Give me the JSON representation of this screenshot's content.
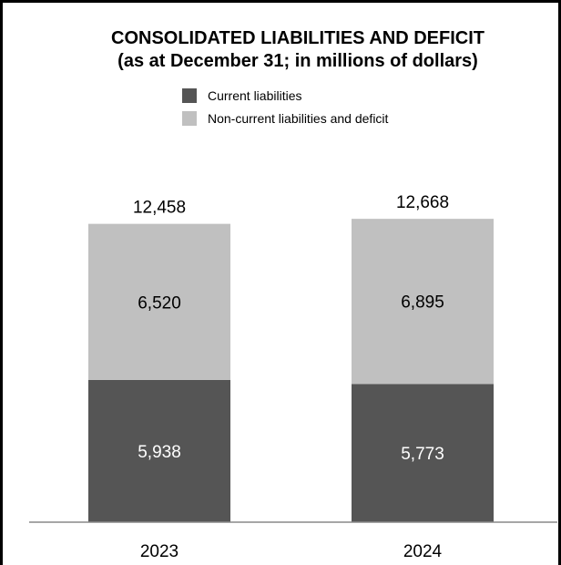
{
  "chart_data": {
    "type": "bar",
    "stacked": true,
    "title": "CONSOLIDATED LIABILITIES AND DEFICIT",
    "subtitle": "(as at December 31; in millions of dollars)",
    "categories": [
      "2023",
      "2024"
    ],
    "series": [
      {
        "name": "Current liabilities",
        "values": [
          5938,
          5773
        ],
        "color": "#555555",
        "label_color": "#ffffff"
      },
      {
        "name": "Non-current liabilities and deficit",
        "values": [
          6520,
          6895
        ],
        "color": "#c0c0c0",
        "label_color": "#000000"
      }
    ],
    "totals": [
      12458,
      12668
    ],
    "value_labels": [
      [
        "5,938",
        "5,773"
      ],
      [
        "6,520",
        "6,895"
      ]
    ],
    "total_labels": [
      "12,458",
      "12,668"
    ],
    "ylim": [
      0,
      13700
    ],
    "grid": false,
    "legend_position": "top-center"
  }
}
